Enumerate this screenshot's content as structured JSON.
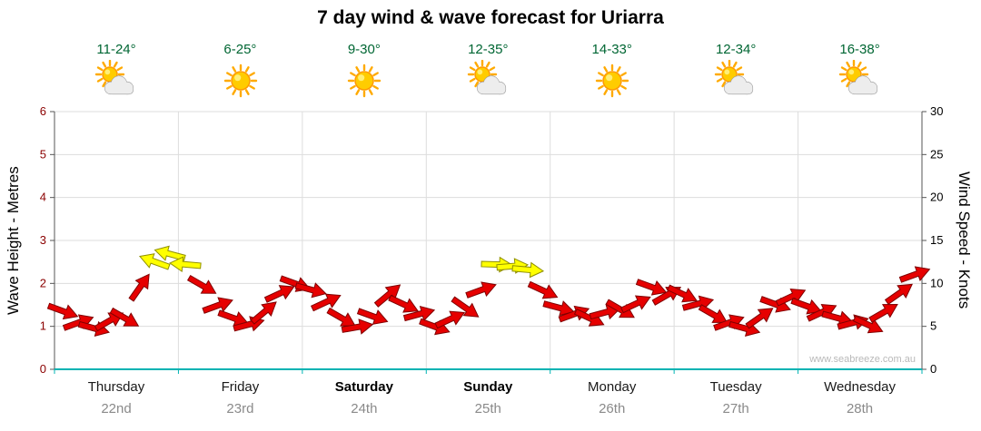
{
  "chart_data": {
    "type": "scatter",
    "marker": "wind-arrow",
    "title": "7 day wind & wave forecast for Uriarra",
    "watermark": "www.seabreeze.com.au",
    "left_axis": {
      "label": "Wave Height - Metres",
      "ticks": [
        0,
        1,
        2,
        3,
        4,
        5,
        6
      ],
      "range": [
        0,
        6
      ]
    },
    "right_axis": {
      "label": "Wind Speed - Knots",
      "ticks": [
        0,
        5,
        10,
        15,
        20,
        25,
        30
      ],
      "range": [
        0,
        30
      ]
    },
    "days": [
      {
        "name": "Thursday",
        "date": "22nd",
        "temp": "11-24°",
        "icon": "sun-cloud",
        "weekend": false
      },
      {
        "name": "Friday",
        "date": "23rd",
        "temp": "6-25°",
        "icon": "sun",
        "weekend": false
      },
      {
        "name": "Saturday",
        "date": "24th",
        "temp": "9-30°",
        "icon": "sun",
        "weekend": true
      },
      {
        "name": "Sunday",
        "date": "25th",
        "temp": "12-35°",
        "icon": "sun-cloud",
        "weekend": true
      },
      {
        "name": "Monday",
        "date": "26th",
        "temp": "14-33°",
        "icon": "sun",
        "weekend": false
      },
      {
        "name": "Tuesday",
        "date": "27th",
        "temp": "12-34°",
        "icon": "sun-cloud",
        "weekend": false
      },
      {
        "name": "Wednesday",
        "date": "28th",
        "temp": "16-38°",
        "icon": "sun-cloud",
        "weekend": false
      }
    ],
    "point_format": "[wind_speed_knots, arrow_rotation_deg, color r=red y=yellow], 8 points per day",
    "points": [
      [
        6.8,
        20,
        "r"
      ],
      [
        5.4,
        -20,
        "r"
      ],
      [
        4.8,
        15,
        "r"
      ],
      [
        5.6,
        -30,
        "r"
      ],
      [
        6.0,
        30,
        "r"
      ],
      [
        9.5,
        -55,
        "r"
      ],
      [
        12.5,
        200,
        "y"
      ],
      [
        13.4,
        195,
        "y"
      ],
      [
        12.2,
        185,
        "y"
      ],
      [
        9.8,
        30,
        "r"
      ],
      [
        7.4,
        -20,
        "r"
      ],
      [
        6.0,
        20,
        "r"
      ],
      [
        5.2,
        -15,
        "r"
      ],
      [
        6.6,
        -40,
        "r"
      ],
      [
        8.8,
        -25,
        "r"
      ],
      [
        10.0,
        20,
        "r"
      ],
      [
        9.3,
        15,
        "r"
      ],
      [
        7.8,
        -25,
        "r"
      ],
      [
        6.0,
        30,
        "r"
      ],
      [
        4.9,
        -10,
        "r"
      ],
      [
        6.2,
        20,
        "r"
      ],
      [
        8.6,
        -40,
        "r"
      ],
      [
        7.6,
        25,
        "r"
      ],
      [
        6.4,
        -15,
        "r"
      ],
      [
        5.0,
        20,
        "r"
      ],
      [
        5.8,
        -25,
        "r"
      ],
      [
        7.2,
        35,
        "r"
      ],
      [
        9.2,
        -20,
        "r"
      ],
      [
        12.2,
        2,
        "y"
      ],
      [
        12.0,
        -5,
        "y"
      ],
      [
        11.6,
        5,
        "y"
      ],
      [
        9.2,
        25,
        "r"
      ],
      [
        7.2,
        15,
        "r"
      ],
      [
        6.4,
        -20,
        "r"
      ],
      [
        6.0,
        25,
        "r"
      ],
      [
        6.6,
        -15,
        "r"
      ],
      [
        7.0,
        30,
        "r"
      ],
      [
        7.6,
        -25,
        "r"
      ],
      [
        9.6,
        20,
        "r"
      ],
      [
        8.6,
        -30,
        "r"
      ],
      [
        8.8,
        25,
        "r"
      ],
      [
        7.6,
        -15,
        "r"
      ],
      [
        6.4,
        30,
        "r"
      ],
      [
        5.4,
        -20,
        "r"
      ],
      [
        4.8,
        15,
        "r"
      ],
      [
        6.0,
        -35,
        "r"
      ],
      [
        7.6,
        20,
        "r"
      ],
      [
        8.4,
        -25,
        "r"
      ],
      [
        7.4,
        20,
        "r"
      ],
      [
        6.6,
        -25,
        "r"
      ],
      [
        6.0,
        15,
        "r"
      ],
      [
        5.4,
        -15,
        "r"
      ],
      [
        5.2,
        25,
        "r"
      ],
      [
        6.6,
        -30,
        "r"
      ],
      [
        8.8,
        -35,
        "r"
      ],
      [
        11.0,
        -20,
        "r"
      ]
    ],
    "colors": {
      "arrow_red": "#e60000",
      "arrow_red_stroke": "#7f0000",
      "arrow_yellow": "#ffff00",
      "arrow_yellow_stroke": "#8f8f00",
      "axis_bottom": "#00b3b3",
      "axis_side": "#555555",
      "grid": "#dddddd",
      "left_tick_text": "#8b0000",
      "right_tick_text": "#000000",
      "temp_text": "#006633",
      "date_text": "#8a8a8a",
      "sun_fill": "#ffcc00",
      "sun_stroke": "#ff9900",
      "ray": "#ffaa00",
      "cloud_fill": "#ededed",
      "cloud_stroke": "#9a9a9a"
    }
  }
}
